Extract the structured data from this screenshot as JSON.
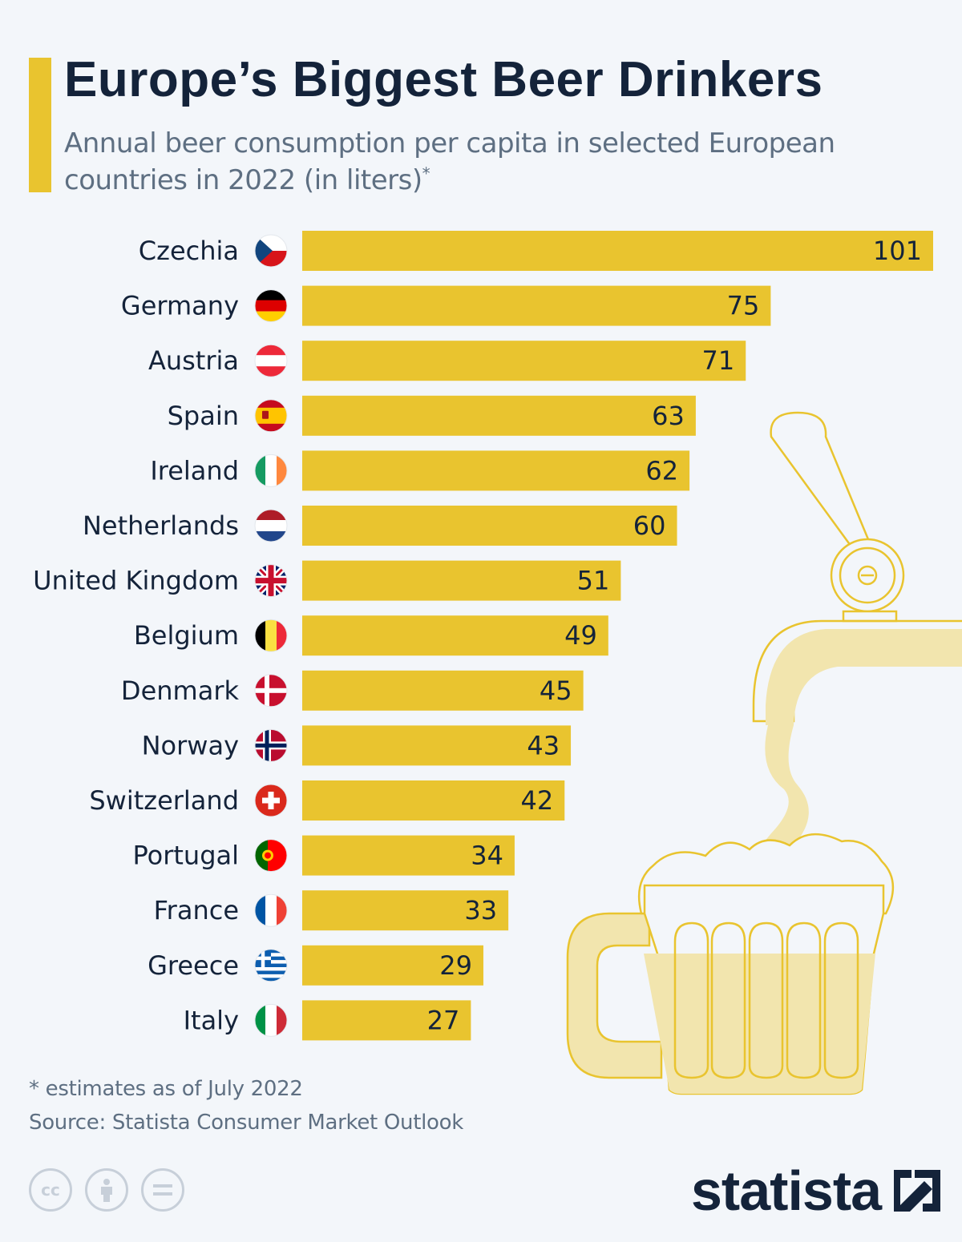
{
  "title": "Europe’s Biggest Beer Drinkers",
  "subtitle": "Annual beer consumption per capita in selected European countries in 2022 (in liters)",
  "subtitle_mark": "*",
  "footnote": "* estimates as of July 2022",
  "source": "Source: Statista Consumer Market Outlook",
  "brand": "statista",
  "colors": {
    "bar": "#e9c42f",
    "accent": "#e9c42f",
    "text": "#14233a",
    "muted": "#5e6f82",
    "background": "#f3f6fa"
  },
  "license_icons": [
    "cc-icon",
    "by-icon",
    "nd-icon"
  ],
  "chart_data": {
    "type": "bar",
    "orientation": "horizontal",
    "categories": [
      "Czechia",
      "Germany",
      "Austria",
      "Spain",
      "Ireland",
      "Netherlands",
      "United Kingdom",
      "Belgium",
      "Denmark",
      "Norway",
      "Switzerland",
      "Portugal",
      "France",
      "Greece",
      "Italy"
    ],
    "values": [
      101,
      75,
      71,
      63,
      62,
      60,
      51,
      49,
      45,
      43,
      42,
      34,
      33,
      29,
      27
    ],
    "flags": [
      "czechia",
      "germany",
      "austria",
      "spain",
      "ireland",
      "netherlands",
      "united-kingdom",
      "belgium",
      "denmark",
      "norway",
      "switzerland",
      "portugal",
      "france",
      "greece",
      "italy"
    ],
    "xlim": [
      0,
      101
    ],
    "grid": false,
    "legend": "none",
    "data_labels": "inside-end"
  }
}
